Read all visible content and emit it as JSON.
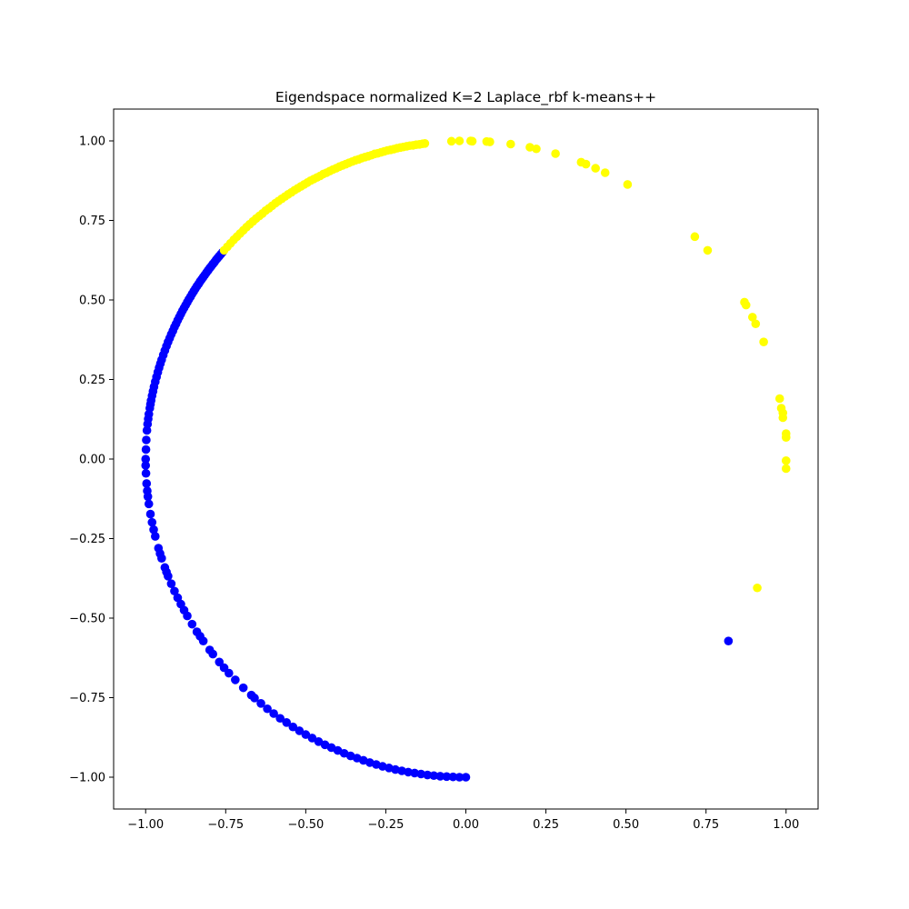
{
  "chart_data": {
    "type": "scatter",
    "title": "Eigendspace normalized K=2 Laplace_rbf k-means++",
    "xlabel": "",
    "ylabel": "",
    "xlim": [
      -1.1,
      1.1
    ],
    "ylim": [
      -1.1,
      1.1
    ],
    "x_ticks": [
      -1.0,
      -0.75,
      -0.5,
      -0.25,
      0.0,
      0.25,
      0.5,
      0.75,
      1.0
    ],
    "y_ticks": [
      -1.0,
      -0.75,
      -0.5,
      -0.25,
      0.0,
      0.25,
      0.5,
      0.75,
      1.0
    ],
    "x_tick_labels": [
      "−1.00",
      "−0.75",
      "−0.50",
      "−0.25",
      "0.00",
      "0.25",
      "0.50",
      "0.75",
      "1.00"
    ],
    "y_tick_labels": [
      "−1.00",
      "−0.75",
      "−0.50",
      "−0.25",
      "0.00",
      "0.25",
      "0.50",
      "0.75",
      "1.00"
    ],
    "grid": false,
    "legend": "none",
    "series": [
      {
        "color": "#0000ff",
        "points": [
          [
            0.0,
            -1.0
          ],
          [
            -0.02,
            -1.0
          ],
          [
            -0.04,
            -0.999
          ],
          [
            -0.06,
            -0.998
          ],
          [
            -0.08,
            -0.997
          ],
          [
            -0.1,
            -0.995
          ],
          [
            -0.12,
            -0.993
          ],
          [
            -0.14,
            -0.99
          ],
          [
            -0.16,
            -0.987
          ],
          [
            -0.18,
            -0.984
          ],
          [
            -0.2,
            -0.98
          ],
          [
            -0.22,
            -0.976
          ],
          [
            -0.24,
            -0.971
          ],
          [
            -0.26,
            -0.966
          ],
          [
            -0.28,
            -0.96
          ],
          [
            -0.3,
            -0.954
          ],
          [
            -0.32,
            -0.947
          ],
          [
            -0.34,
            -0.94
          ],
          [
            -0.36,
            -0.933
          ],
          [
            -0.38,
            -0.925
          ],
          [
            -0.4,
            -0.916
          ],
          [
            -0.42,
            -0.907
          ],
          [
            -0.44,
            -0.898
          ],
          [
            -0.46,
            -0.888
          ],
          [
            -0.48,
            -0.877
          ],
          [
            -0.5,
            -0.866
          ],
          [
            -0.52,
            -0.854
          ],
          [
            -0.54,
            -0.842
          ],
          [
            -0.56,
            -0.828
          ],
          [
            -0.58,
            -0.815
          ],
          [
            -0.6,
            -0.8
          ],
          [
            -0.62,
            -0.785
          ],
          [
            -0.64,
            -0.768
          ],
          [
            -0.66,
            -0.751
          ],
          [
            -0.67,
            -0.742
          ],
          [
            -0.695,
            -0.719
          ],
          [
            -0.72,
            -0.694
          ],
          [
            -0.74,
            -0.673
          ],
          [
            -0.755,
            -0.656
          ],
          [
            -0.77,
            -0.638
          ],
          [
            -0.79,
            -0.613
          ],
          [
            -0.8,
            -0.6
          ],
          [
            -0.82,
            -0.572
          ],
          [
            -0.83,
            -0.557
          ],
          [
            -0.84,
            -0.543
          ],
          [
            -0.855,
            -0.519
          ],
          [
            -0.87,
            -0.493
          ],
          [
            -0.88,
            -0.475
          ],
          [
            -0.89,
            -0.456
          ],
          [
            -0.9,
            -0.436
          ],
          [
            -0.91,
            -0.415
          ],
          [
            -0.92,
            -0.392
          ],
          [
            -0.93,
            -0.368
          ],
          [
            -0.935,
            -0.355
          ],
          [
            -0.94,
            -0.341
          ],
          [
            -0.95,
            -0.312
          ],
          [
            -0.955,
            -0.297
          ],
          [
            -0.96,
            -0.28
          ],
          [
            -0.97,
            -0.243
          ],
          [
            -0.975,
            -0.222
          ],
          [
            -0.98,
            -0.199
          ],
          [
            -0.985,
            -0.173
          ],
          [
            -0.99,
            -0.141
          ],
          [
            -0.993,
            -0.118
          ],
          [
            -0.995,
            -0.1
          ],
          [
            -0.997,
            -0.077
          ],
          [
            -0.999,
            -0.045
          ],
          [
            -1.0,
            -0.02
          ],
          [
            -1.0,
            0.0
          ],
          [
            -0.999,
            0.03
          ],
          [
            -0.998,
            0.06
          ],
          [
            -0.996,
            0.09
          ],
          [
            -0.994,
            0.11
          ],
          [
            -0.992,
            0.126
          ],
          [
            -0.99,
            0.141
          ],
          [
            -0.987,
            0.16
          ],
          [
            -0.985,
            0.172
          ],
          [
            -0.983,
            0.184
          ],
          [
            -0.98,
            0.199
          ],
          [
            -0.977,
            0.213
          ],
          [
            -0.974,
            0.227
          ],
          [
            -0.97,
            0.243
          ],
          [
            -0.966,
            0.258
          ],
          [
            -0.962,
            0.273
          ],
          [
            -0.958,
            0.287
          ],
          [
            -0.954,
            0.3
          ],
          [
            -0.95,
            0.312
          ],
          [
            -0.945,
            0.327
          ],
          [
            -0.94,
            0.341
          ],
          [
            -0.935,
            0.355
          ],
          [
            -0.93,
            0.368
          ],
          [
            -0.925,
            0.38
          ],
          [
            -0.92,
            0.392
          ],
          [
            -0.915,
            0.403
          ],
          [
            -0.91,
            0.415
          ],
          [
            -0.905,
            0.425
          ],
          [
            -0.9,
            0.436
          ],
          [
            -0.895,
            0.446
          ],
          [
            -0.89,
            0.456
          ],
          [
            -0.885,
            0.466
          ],
          [
            -0.88,
            0.475
          ],
          [
            -0.875,
            0.484
          ],
          [
            -0.87,
            0.493
          ],
          [
            -0.865,
            0.502
          ],
          [
            -0.86,
            0.51
          ],
          [
            -0.855,
            0.519
          ],
          [
            -0.85,
            0.527
          ],
          [
            -0.845,
            0.535
          ],
          [
            -0.84,
            0.543
          ],
          [
            -0.835,
            0.55
          ],
          [
            -0.83,
            0.558
          ],
          [
            -0.825,
            0.565
          ],
          [
            -0.82,
            0.572
          ],
          [
            -0.815,
            0.579
          ],
          [
            -0.81,
            0.586
          ],
          [
            -0.805,
            0.593
          ],
          [
            -0.8,
            0.6
          ],
          [
            -0.795,
            0.606
          ],
          [
            -0.79,
            0.613
          ],
          [
            -0.785,
            0.619
          ],
          [
            -0.78,
            0.626
          ],
          [
            -0.775,
            0.632
          ],
          [
            -0.77,
            0.638
          ],
          [
            -0.765,
            0.644
          ],
          [
            -0.76,
            0.65
          ],
          [
            0.82,
            -0.572
          ]
        ]
      },
      {
        "color": "#ffff00",
        "points": [
          [
            -0.755,
            0.656
          ],
          [
            -0.745,
            0.667
          ],
          [
            -0.735,
            0.678
          ],
          [
            -0.725,
            0.689
          ],
          [
            -0.715,
            0.699
          ],
          [
            -0.705,
            0.709
          ],
          [
            -0.695,
            0.719
          ],
          [
            -0.685,
            0.729
          ],
          [
            -0.675,
            0.738
          ],
          [
            -0.665,
            0.747
          ],
          [
            -0.655,
            0.756
          ],
          [
            -0.645,
            0.764
          ],
          [
            -0.635,
            0.772
          ],
          [
            -0.625,
            0.781
          ],
          [
            -0.615,
            0.788
          ],
          [
            -0.605,
            0.796
          ],
          [
            -0.595,
            0.804
          ],
          [
            -0.585,
            0.811
          ],
          [
            -0.575,
            0.818
          ],
          [
            -0.565,
            0.825
          ],
          [
            -0.555,
            0.832
          ],
          [
            -0.545,
            0.838
          ],
          [
            -0.535,
            0.845
          ],
          [
            -0.525,
            0.851
          ],
          [
            -0.515,
            0.857
          ],
          [
            -0.505,
            0.863
          ],
          [
            -0.495,
            0.869
          ],
          [
            -0.485,
            0.875
          ],
          [
            -0.475,
            0.88
          ],
          [
            -0.465,
            0.885
          ],
          [
            -0.455,
            0.89
          ],
          [
            -0.445,
            0.896
          ],
          [
            -0.435,
            0.9
          ],
          [
            -0.425,
            0.905
          ],
          [
            -0.415,
            0.91
          ],
          [
            -0.405,
            0.914
          ],
          [
            -0.395,
            0.919
          ],
          [
            -0.385,
            0.923
          ],
          [
            -0.375,
            0.927
          ],
          [
            -0.365,
            0.931
          ],
          [
            -0.355,
            0.935
          ],
          [
            -0.345,
            0.939
          ],
          [
            -0.335,
            0.942
          ],
          [
            -0.325,
            0.946
          ],
          [
            -0.315,
            0.949
          ],
          [
            -0.305,
            0.952
          ],
          [
            -0.295,
            0.955
          ],
          [
            -0.285,
            0.959
          ],
          [
            -0.275,
            0.961
          ],
          [
            -0.265,
            0.964
          ],
          [
            -0.255,
            0.967
          ],
          [
            -0.245,
            0.97
          ],
          [
            -0.235,
            0.972
          ],
          [
            -0.225,
            0.974
          ],
          [
            -0.215,
            0.977
          ],
          [
            -0.205,
            0.979
          ],
          [
            -0.195,
            0.981
          ],
          [
            -0.185,
            0.983
          ],
          [
            -0.175,
            0.985
          ],
          [
            -0.165,
            0.986
          ],
          [
            -0.155,
            0.988
          ],
          [
            -0.145,
            0.989
          ],
          [
            -0.135,
            0.991
          ],
          [
            -0.128,
            0.992
          ],
          [
            -0.045,
            0.999
          ],
          [
            -0.02,
            1.0
          ],
          [
            0.015,
            1.0
          ],
          [
            0.02,
            0.999
          ],
          [
            0.065,
            0.998
          ],
          [
            0.075,
            0.997
          ],
          [
            0.14,
            0.99
          ],
          [
            0.2,
            0.98
          ],
          [
            0.22,
            0.975
          ],
          [
            0.28,
            0.96
          ],
          [
            0.36,
            0.933
          ],
          [
            0.375,
            0.927
          ],
          [
            0.405,
            0.914
          ],
          [
            0.435,
            0.9
          ],
          [
            0.505,
            0.863
          ],
          [
            0.715,
            0.699
          ],
          [
            0.755,
            0.656
          ],
          [
            0.87,
            0.493
          ],
          [
            0.875,
            0.484
          ],
          [
            0.895,
            0.446
          ],
          [
            0.905,
            0.425
          ],
          [
            0.93,
            0.368
          ],
          [
            0.98,
            0.19
          ],
          [
            0.985,
            0.16
          ],
          [
            0.99,
            0.145
          ],
          [
            0.99,
            0.13
          ],
          [
            1.0,
            0.08
          ],
          [
            1.0,
            0.068
          ],
          [
            1.0,
            -0.005
          ],
          [
            1.0,
            -0.03
          ],
          [
            0.91,
            -0.405
          ]
        ]
      }
    ]
  }
}
